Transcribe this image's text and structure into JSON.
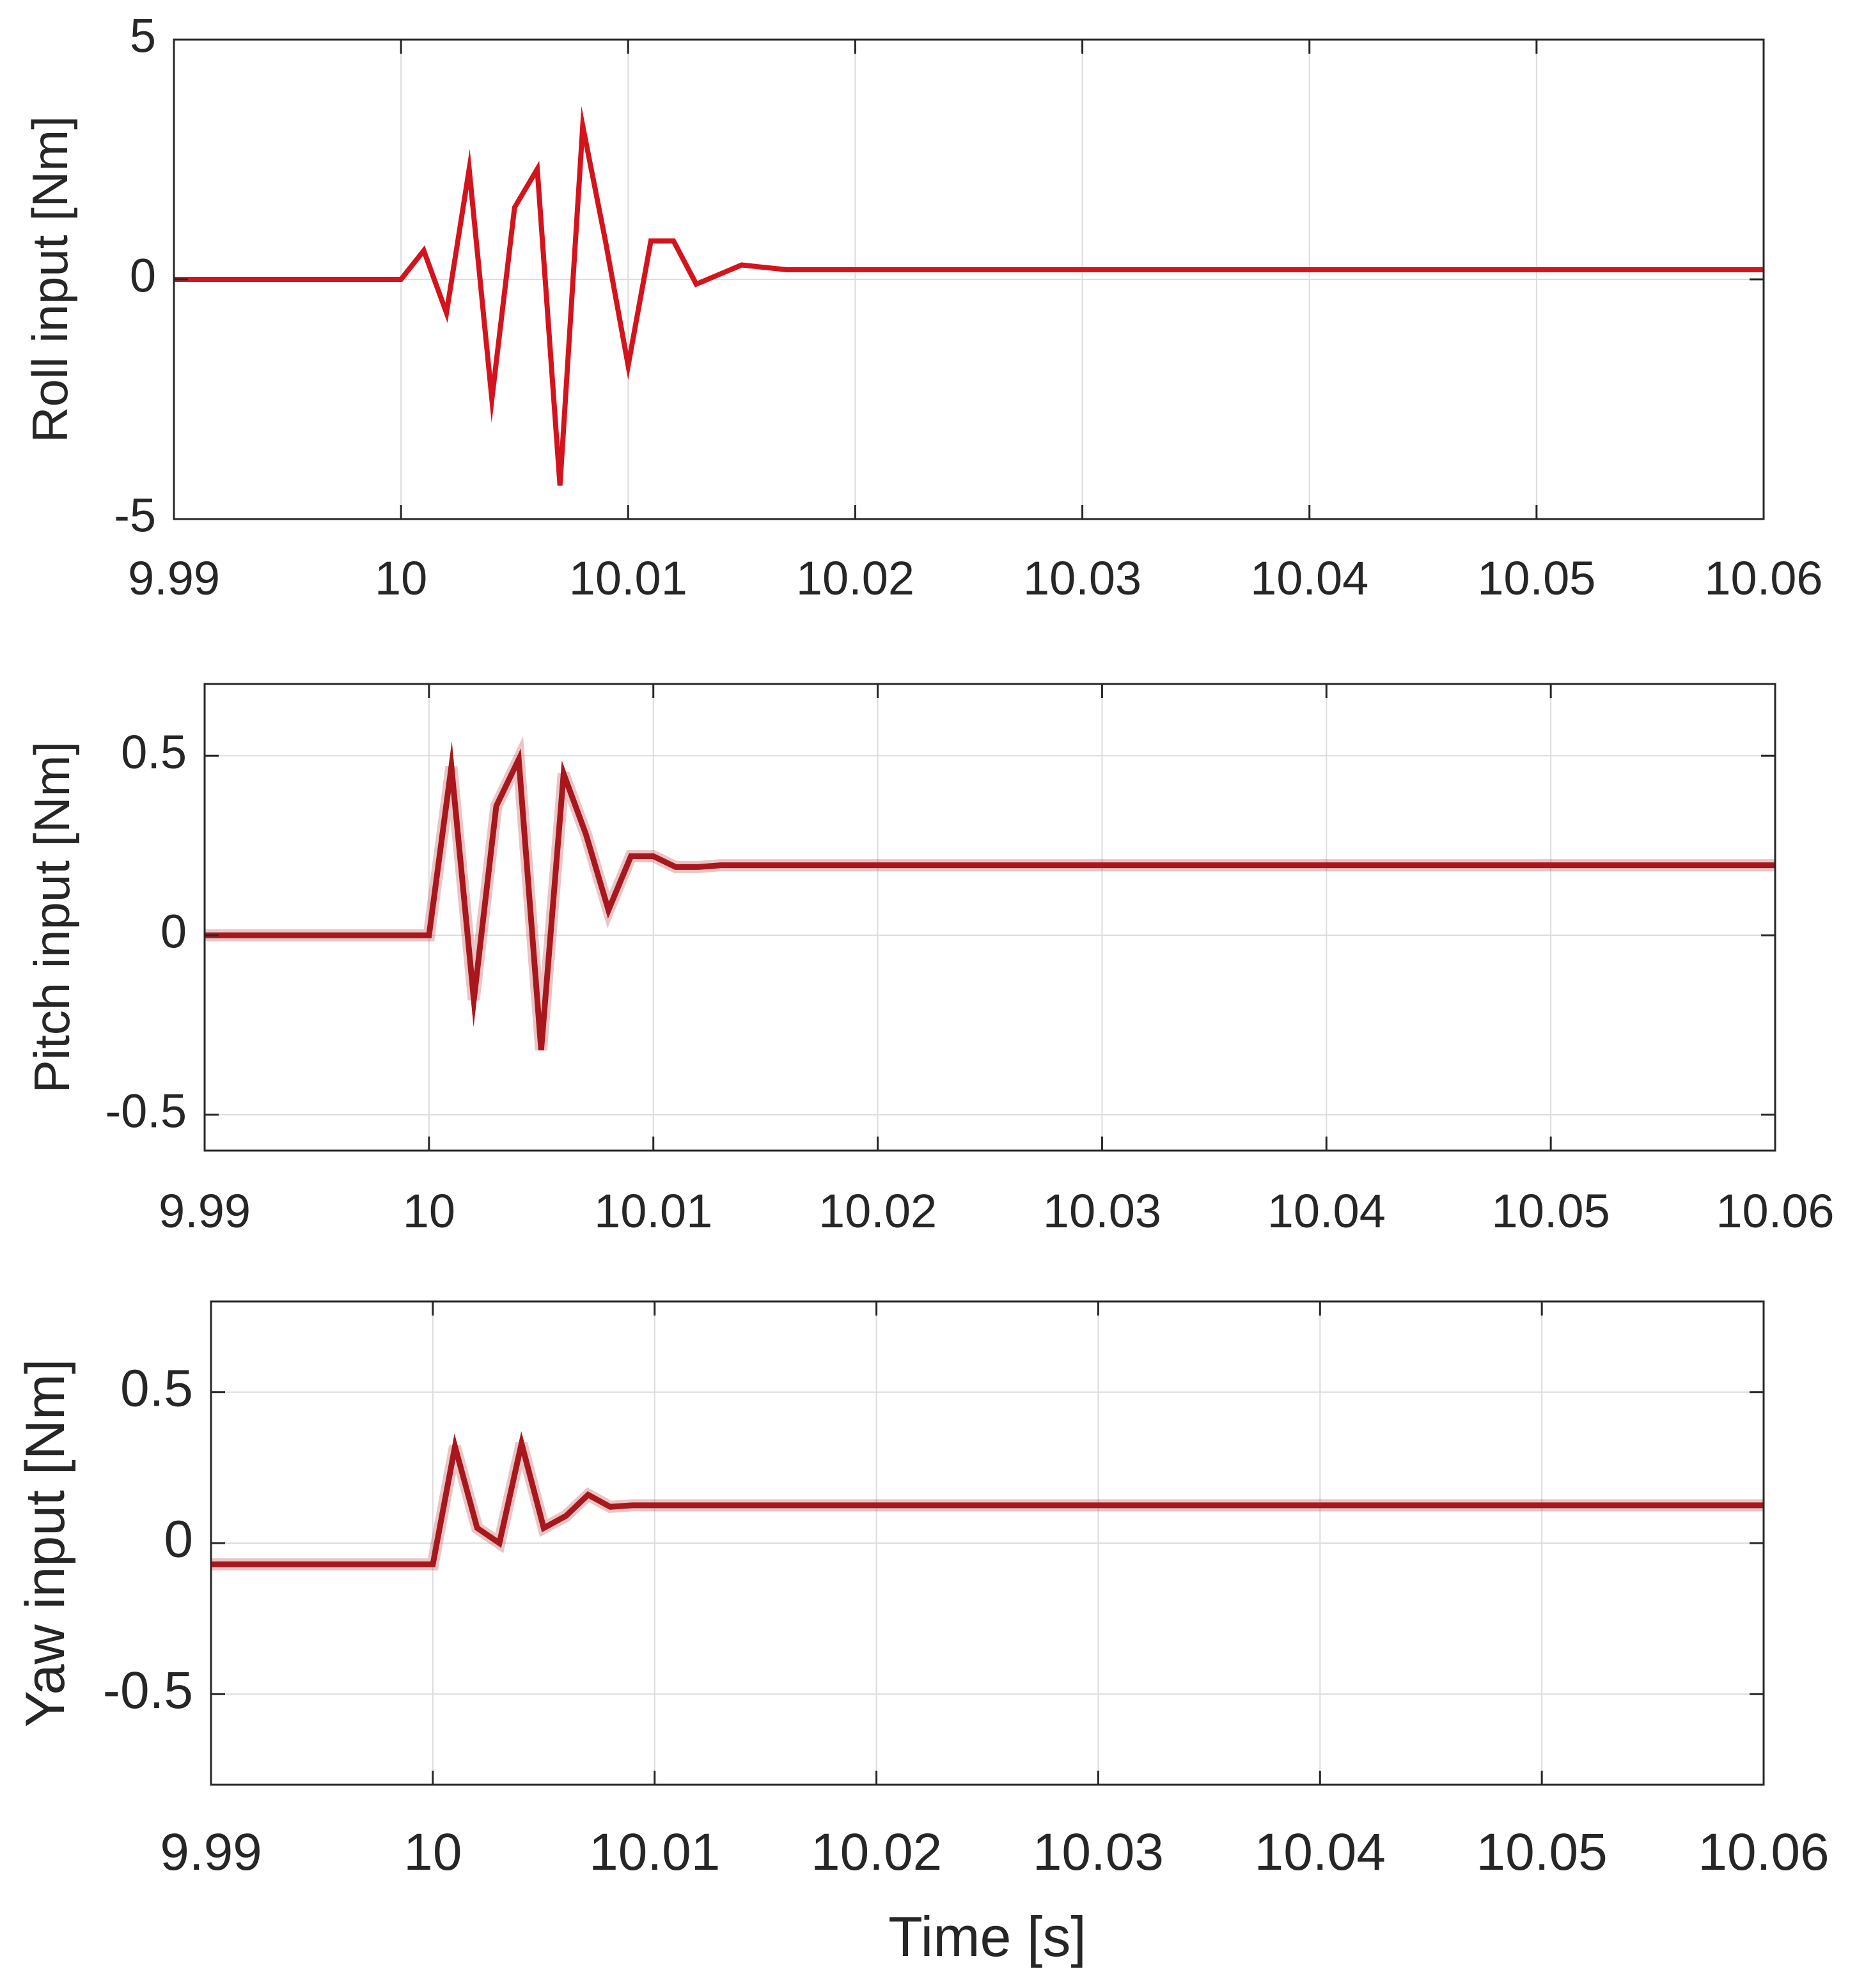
{
  "chart_data": [
    {
      "type": "line",
      "xlabel": "",
      "ylabel": "Roll input [Nm]",
      "xlim": [
        9.99,
        10.06
      ],
      "ylim": [
        -5,
        5
      ],
      "xticks": [
        9.99,
        10,
        10.01,
        10.02,
        10.03,
        10.04,
        10.05,
        10.06
      ],
      "xtick_labels": [
        "9.99",
        "10",
        "10.01",
        "10.02",
        "10.03",
        "10.04",
        "10.05",
        "10.06"
      ],
      "yticks": [
        -5,
        0,
        5
      ],
      "ytick_labels": [
        "-5",
        "0",
        "5"
      ],
      "grid": true,
      "line_color": "#d4141c",
      "series": [
        {
          "x": [
            9.99,
            10.0,
            10.001,
            10.002,
            10.003,
            10.004,
            10.005,
            10.006,
            10.007,
            10.008,
            10.009,
            10.01,
            10.011,
            10.012,
            10.013,
            10.014,
            10.015,
            10.016,
            10.017,
            10.06
          ],
          "y": [
            0,
            0,
            0.6,
            -0.7,
            2.3,
            -2.5,
            1.5,
            2.3,
            -4.3,
            3.2,
            0.8,
            -1.8,
            0.8,
            0.8,
            -0.1,
            0.1,
            0.3,
            0.25,
            0.2,
            0.2
          ]
        }
      ]
    },
    {
      "type": "line",
      "xlabel": "",
      "ylabel": "Pitch input [Nm]",
      "xlim": [
        9.99,
        10.06
      ],
      "ylim": [
        -0.6,
        0.7
      ],
      "xticks": [
        9.99,
        10,
        10.01,
        10.02,
        10.03,
        10.04,
        10.05,
        10.06
      ],
      "xtick_labels": [
        "9.99",
        "10",
        "10.01",
        "10.02",
        "10.03",
        "10.04",
        "10.05",
        "10.06"
      ],
      "yticks": [
        -0.5,
        0,
        0.5
      ],
      "ytick_labels": [
        "-0.5",
        "0",
        "0.5"
      ],
      "grid": true,
      "line_color": "#a8171c",
      "series": [
        {
          "x": [
            9.99,
            10.0,
            10.001,
            10.002,
            10.003,
            10.004,
            10.005,
            10.006,
            10.007,
            10.008,
            10.009,
            10.01,
            10.011,
            10.012,
            10.013,
            10.06
          ],
          "y": [
            0,
            0,
            0.47,
            -0.18,
            0.36,
            0.49,
            -0.32,
            0.45,
            0.28,
            0.07,
            0.22,
            0.22,
            0.19,
            0.19,
            0.195,
            0.195
          ]
        }
      ]
    },
    {
      "type": "line",
      "xlabel": "Time [s]",
      "ylabel": "Yaw input [Nm]",
      "xlim": [
        9.99,
        10.06
      ],
      "ylim": [
        -0.8,
        0.8
      ],
      "xticks": [
        9.99,
        10,
        10.01,
        10.02,
        10.03,
        10.04,
        10.05,
        10.06
      ],
      "xtick_labels": [
        "9.99",
        "10",
        "10.01",
        "10.02",
        "10.03",
        "10.04",
        "10.05",
        "10.06"
      ],
      "yticks": [
        -0.5,
        0,
        0.5
      ],
      "ytick_labels": [
        "-0.5",
        "0",
        "0.5"
      ],
      "grid": true,
      "line_color": "#a8171c",
      "series": [
        {
          "x": [
            9.99,
            10.0,
            10.001,
            10.002,
            10.003,
            10.004,
            10.005,
            10.006,
            10.007,
            10.008,
            10.009,
            10.06
          ],
          "y": [
            -0.07,
            -0.07,
            0.32,
            0.05,
            0.0,
            0.33,
            0.05,
            0.09,
            0.16,
            0.12,
            0.125,
            0.125
          ]
        }
      ]
    }
  ]
}
